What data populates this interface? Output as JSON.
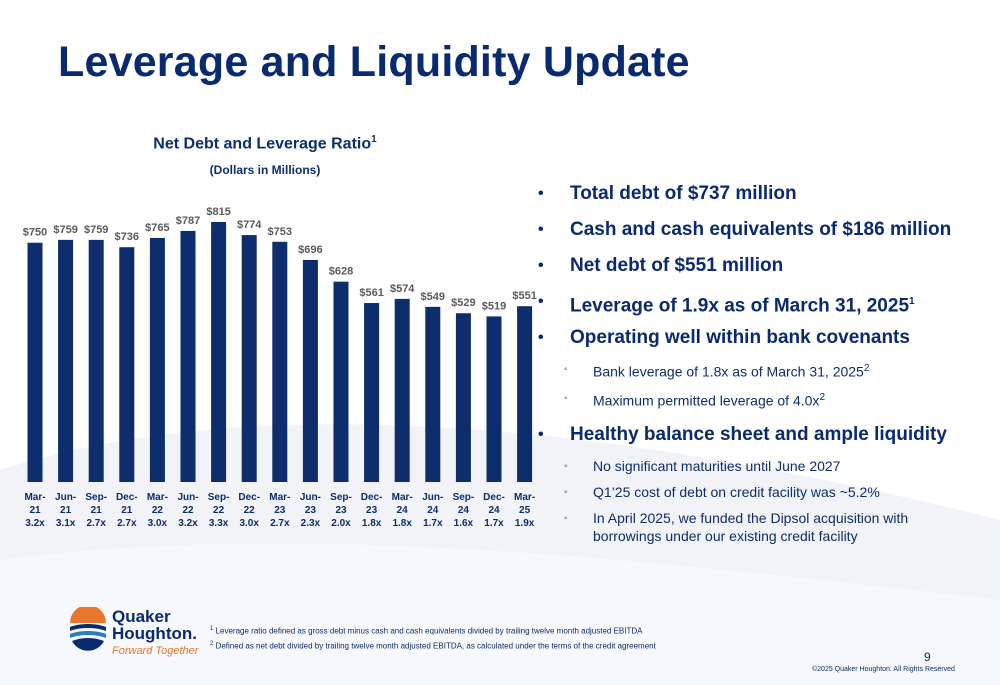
{
  "title": "Leverage and Liquidity Update",
  "chart_data": {
    "type": "bar",
    "title": "Net Debt and Leverage Ratio",
    "title_sup": "1",
    "subtitle": "(Dollars in Millions)",
    "categories": [
      "Mar-21",
      "Jun-21",
      "Sep-21",
      "Dec-21",
      "Mar-22",
      "Jun-22",
      "Sep-22",
      "Dec-22",
      "Mar-23",
      "Jun-23",
      "Sep-23",
      "Dec-23",
      "Mar-24",
      "Jun-24",
      "Sep-24",
      "Dec-24",
      "Mar-25"
    ],
    "category_lines": [
      [
        "Mar-",
        "21"
      ],
      [
        "Jun-",
        "21"
      ],
      [
        "Sep-",
        "21"
      ],
      [
        "Dec-",
        "21"
      ],
      [
        "Mar-",
        "22"
      ],
      [
        "Jun-",
        "22"
      ],
      [
        "Sep-",
        "22"
      ],
      [
        "Dec-",
        "22"
      ],
      [
        "Mar-",
        "23"
      ],
      [
        "Jun-",
        "23"
      ],
      [
        "Sep-",
        "23"
      ],
      [
        "Dec-",
        "23"
      ],
      [
        "Mar-",
        "24"
      ],
      [
        "Jun-",
        "24"
      ],
      [
        "Sep-",
        "24"
      ],
      [
        "Dec-",
        "24"
      ],
      [
        "Mar-",
        "25"
      ]
    ],
    "values": [
      750,
      759,
      759,
      736,
      765,
      787,
      815,
      774,
      753,
      696,
      628,
      561,
      574,
      549,
      529,
      519,
      551
    ],
    "value_labels": [
      "$750",
      "$759",
      "$759",
      "$736",
      "$765",
      "$787",
      "$815",
      "$774",
      "$753",
      "$696",
      "$628",
      "$561",
      "$574",
      "$549",
      "$529",
      "$519",
      "$551"
    ],
    "leverage_labels": [
      "3.2x",
      "3.1x",
      "2.7x",
      "2.7x",
      "3.0x",
      "3.2x",
      "3.3x",
      "3.0x",
      "2.7x",
      "2.3x",
      "2.0x",
      "1.8x",
      "1.8x",
      "1.7x",
      "1.6x",
      "1.7x",
      "1.9x"
    ],
    "leverage": [
      3.2,
      3.1,
      2.7,
      2.7,
      3.0,
      3.2,
      3.3,
      3.0,
      2.7,
      2.3,
      2.0,
      1.8,
      1.8,
      1.7,
      1.6,
      1.7,
      1.9
    ],
    "ylim": [
      0,
      815
    ],
    "grid": false,
    "bar_color": "#0d2d6c"
  },
  "bullets": [
    {
      "text": "Total debt of $737 million",
      "sup": ""
    },
    {
      "text": "Cash and cash equivalents of $186 million",
      "sup": ""
    },
    {
      "text": "Net debt of $551 million",
      "sup": ""
    },
    {
      "text": "Leverage of 1.9x as of March 31, 2025",
      "sup": "1"
    },
    {
      "text": "Operating well within bank covenants",
      "sup": ""
    },
    {
      "text": "Healthy balance sheet and ample liquidity",
      "sup": ""
    }
  ],
  "sub_bullets_covenants": [
    {
      "text": "Bank leverage of 1.8x as of March 31, 2025",
      "sup": "2"
    },
    {
      "text": "Maximum permitted leverage of 4.0x",
      "sup": "2"
    }
  ],
  "sub_bullets_liquidity": [
    {
      "text": "No significant maturities until June 2027"
    },
    {
      "text": "Q1’25 cost of debt on credit facility was ~5.2%"
    },
    {
      "text": "In April 2025, we funded the Dipsol acquisition with borrowings under our existing credit facility"
    }
  ],
  "bullet_glyph": "•",
  "sub_bullet_glyph": "◦",
  "footnotes": [
    {
      "num": "1",
      "text": "Leverage ratio defined as gross debt minus cash and cash equivalents divided by trailing twelve month adjusted EBITDA"
    },
    {
      "num": "2",
      "text": "Defined as net debt divided by trailing twelve month adjusted EBITDA, as calculated under the terms of the credit agreement"
    }
  ],
  "page_number": "9",
  "copyright": "©2025 Quaker Houghton. All Rights Reserved",
  "logo": {
    "line1": "Quaker",
    "line2": "Houghton.",
    "tagline": "Forward Together"
  },
  "colors": {
    "navy": "#0d2d6c",
    "orange": "#e8762c",
    "wave": "#eef0f5"
  }
}
